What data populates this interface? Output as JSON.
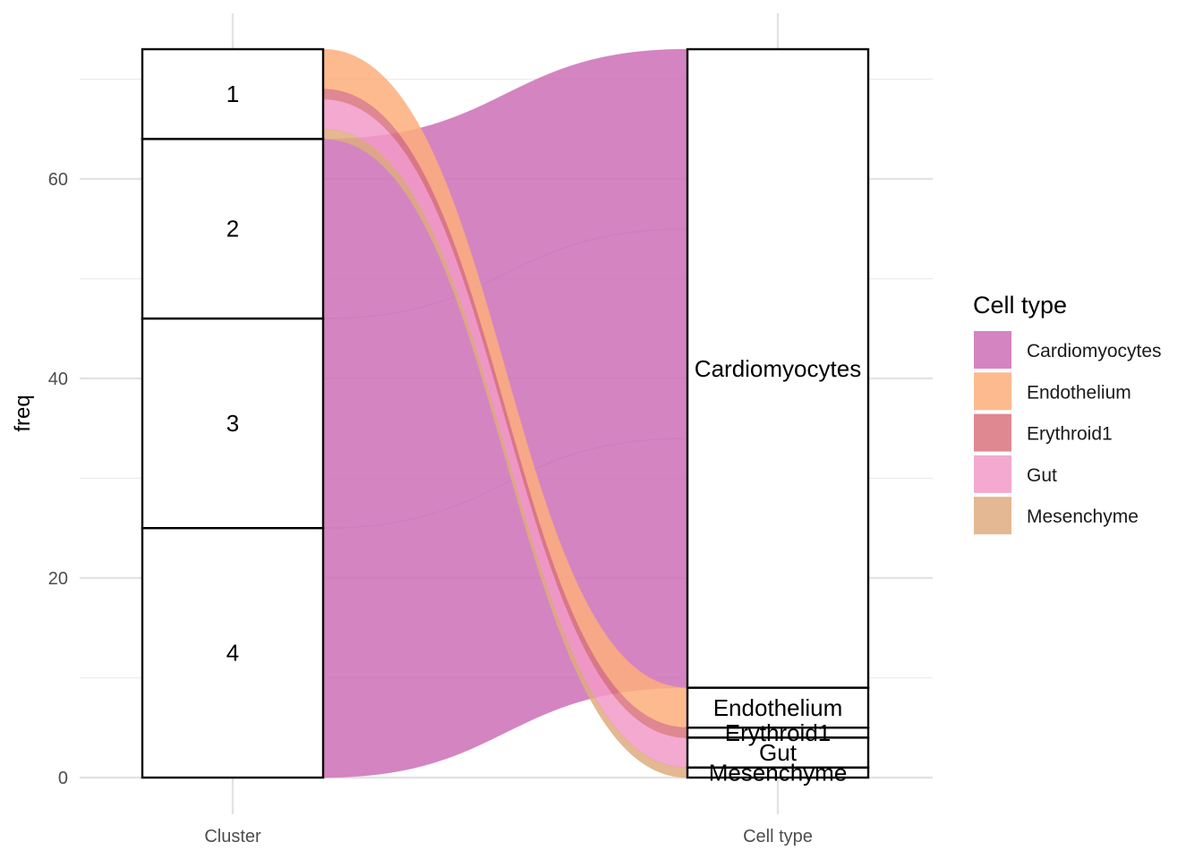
{
  "chart_data": {
    "type": "alluvial",
    "axes": [
      "Cluster",
      "Cell type"
    ],
    "ylabel": "freq",
    "ylim": [
      0,
      73
    ],
    "yticks": [
      0,
      20,
      40,
      60
    ],
    "grid": true,
    "legend": {
      "title": "Cell type",
      "placement": "right",
      "entries": [
        {
          "name": "Cardiomyocytes",
          "color": "#cc6fb6"
        },
        {
          "name": "Endothelium",
          "color": "#fdae7b"
        },
        {
          "name": "Erythroid1",
          "color": "#d9737f"
        },
        {
          "name": "Gut",
          "color": "#f29ac8"
        },
        {
          "name": "Mesenchyme",
          "color": "#deac7f"
        }
      ]
    },
    "clusters": [
      "1",
      "2",
      "3",
      "4"
    ],
    "cell_types": [
      "Cardiomyocytes",
      "Endothelium",
      "Erythroid1",
      "Gut",
      "Mesenchyme"
    ],
    "flows": [
      {
        "cluster": "1",
        "cell_type": "Endothelium",
        "freq": 4
      },
      {
        "cluster": "1",
        "cell_type": "Erythroid1",
        "freq": 1
      },
      {
        "cluster": "1",
        "cell_type": "Gut",
        "freq": 3
      },
      {
        "cluster": "1",
        "cell_type": "Mesenchyme",
        "freq": 1
      },
      {
        "cluster": "2",
        "cell_type": "Cardiomyocytes",
        "freq": 18
      },
      {
        "cluster": "3",
        "cell_type": "Cardiomyocytes",
        "freq": 21
      },
      {
        "cluster": "4",
        "cell_type": "Cardiomyocytes",
        "freq": 25
      }
    ]
  }
}
